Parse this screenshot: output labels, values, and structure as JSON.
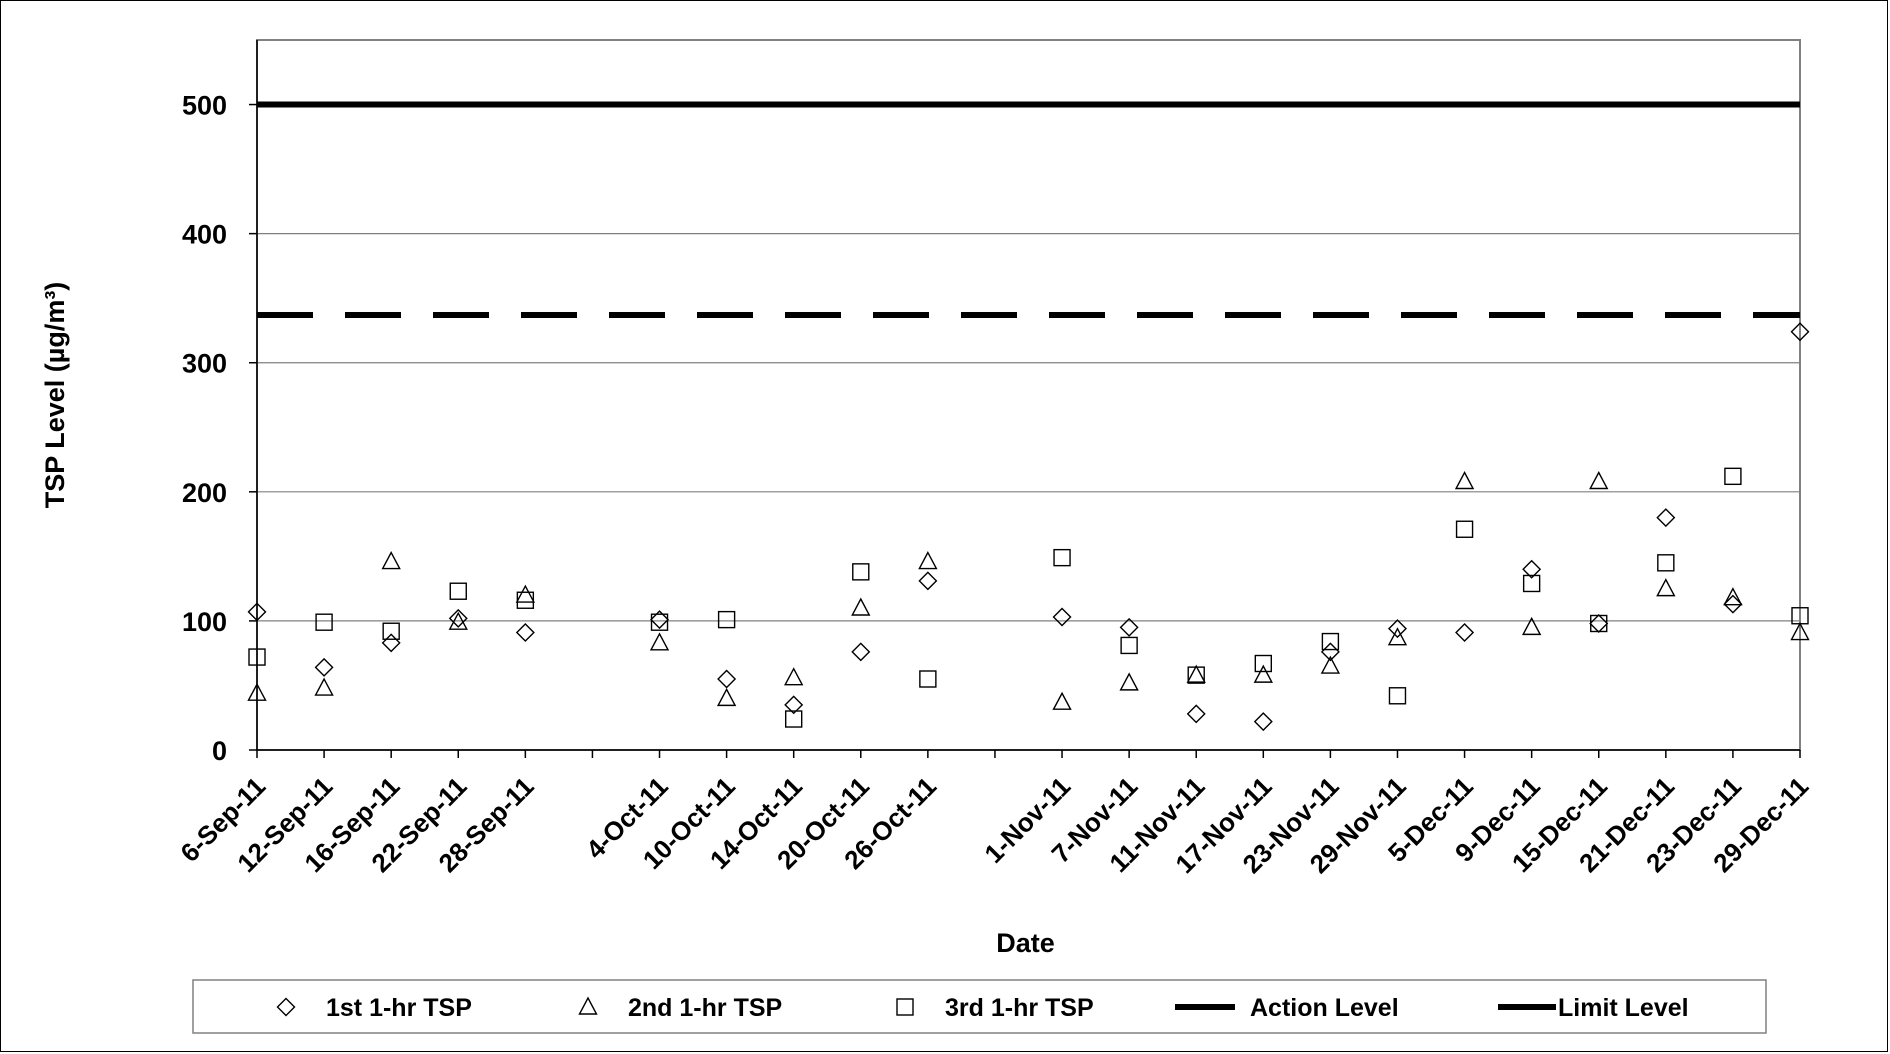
{
  "chart_data": {
    "type": "scatter",
    "xlabel": "Date",
    "ylabel": "TSP Level  (µg/m³)",
    "ylim": [
      0,
      550
    ],
    "yticks": [
      0,
      100,
      200,
      300,
      400,
      500
    ],
    "grid": "horizontal",
    "legend_position": "bottom",
    "categories": [
      "6-Sep-11",
      "12-Sep-11",
      "16-Sep-11",
      "22-Sep-11",
      "28-Sep-11",
      "",
      "4-Oct-11",
      "10-Oct-11",
      "14-Oct-11",
      "20-Oct-11",
      "26-Oct-11",
      "",
      "1-Nov-11",
      "7-Nov-11",
      "11-Nov-11",
      "17-Nov-11",
      "23-Nov-11",
      "29-Nov-11",
      "5-Dec-11",
      "9-Dec-11",
      "15-Dec-11",
      "21-Dec-11",
      "23-Dec-11",
      "29-Dec-11"
    ],
    "series": [
      {
        "name": "1st 1-hr TSP",
        "marker": "diamond",
        "values": [
          107,
          64,
          83,
          102,
          91,
          null,
          101,
          55,
          35,
          76,
          131,
          null,
          103,
          95,
          28,
          22,
          76,
          94,
          91,
          140,
          98,
          180,
          113,
          324
        ]
      },
      {
        "name": "2nd 1-hr TSP",
        "marker": "triangle",
        "values": [
          44,
          48,
          146,
          99,
          120,
          null,
          83,
          40,
          56,
          110,
          146,
          null,
          37,
          52,
          58,
          58,
          65,
          87,
          208,
          95,
          208,
          125,
          118,
          91
        ]
      },
      {
        "name": "3rd 1-hr TSP",
        "marker": "square",
        "values": [
          72,
          99,
          92,
          123,
          116,
          null,
          99,
          101,
          24,
          138,
          55,
          null,
          149,
          81,
          58,
          67,
          84,
          42,
          171,
          129,
          98,
          145,
          212,
          104
        ]
      }
    ],
    "reference_lines": [
      {
        "name": "Action Level",
        "value": 337,
        "style": "dashed"
      },
      {
        "name": "Limit Level",
        "value": 500,
        "style": "solid"
      }
    ],
    "colors": {
      "marker": "#000000",
      "line": "#000000",
      "grid": "#808080"
    }
  }
}
